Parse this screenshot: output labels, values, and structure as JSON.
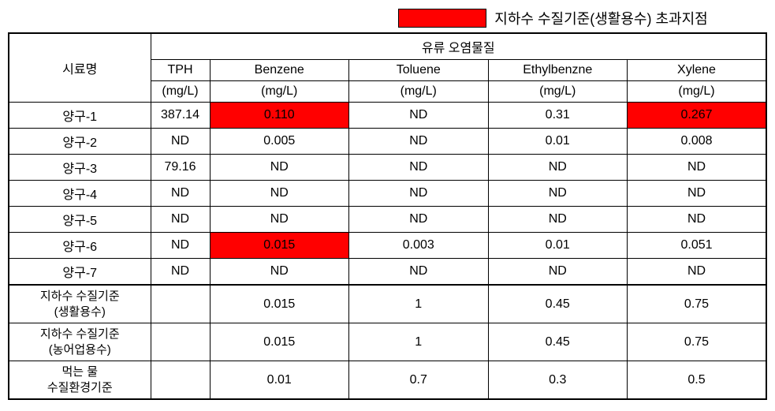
{
  "legend": {
    "label": "지하수 수질기준(생활용수) 초과지점",
    "color": "#ff0000"
  },
  "table": {
    "header": {
      "rowLabel": "시료명",
      "groupLabel": "유류 오염물질",
      "columns": [
        {
          "name": "TPH",
          "unit": "(mg/L)"
        },
        {
          "name": "Benzene",
          "unit": "(mg/L)"
        },
        {
          "name": "Toluene",
          "unit": "(mg/L)"
        },
        {
          "name": "Ethylbenzne",
          "unit": "(mg/L)"
        },
        {
          "name": "Xylene",
          "unit": "(mg/L)"
        }
      ]
    },
    "rows": [
      {
        "label": "양구-1",
        "values": [
          "387.14",
          "0.110",
          "ND",
          "0.31",
          "0.267"
        ],
        "highlight": [
          false,
          true,
          false,
          false,
          true
        ]
      },
      {
        "label": "양구-2",
        "values": [
          "ND",
          "0.005",
          "ND",
          "0.01",
          "0.008"
        ],
        "highlight": [
          false,
          false,
          false,
          false,
          false
        ]
      },
      {
        "label": "양구-3",
        "values": [
          "79.16",
          "ND",
          "ND",
          "ND",
          "ND"
        ],
        "highlight": [
          false,
          false,
          false,
          false,
          false
        ]
      },
      {
        "label": "양구-4",
        "values": [
          "ND",
          "ND",
          "ND",
          "ND",
          "ND"
        ],
        "highlight": [
          false,
          false,
          false,
          false,
          false
        ]
      },
      {
        "label": "양구-5",
        "values": [
          "ND",
          "ND",
          "ND",
          "ND",
          "ND"
        ],
        "highlight": [
          false,
          false,
          false,
          false,
          false
        ]
      },
      {
        "label": "양구-6",
        "values": [
          "ND",
          "0.015",
          "0.003",
          "0.01",
          "0.051"
        ],
        "highlight": [
          false,
          true,
          false,
          false,
          false
        ]
      },
      {
        "label": "양구-7",
        "values": [
          "ND",
          "ND",
          "ND",
          "ND",
          "ND"
        ],
        "highlight": [
          false,
          false,
          false,
          false,
          false
        ]
      }
    ],
    "standards": [
      {
        "label1": "지하수 수질기준",
        "label2": "(생활용수)",
        "values": [
          "",
          "0.015",
          "1",
          "0.45",
          "0.75"
        ]
      },
      {
        "label1": "지하수 수질기준",
        "label2": "(농어업용수)",
        "values": [
          "",
          "0.015",
          "1",
          "0.45",
          "0.75"
        ]
      },
      {
        "label1": "먹는 물",
        "label2": "수질환경기준",
        "values": [
          "",
          "0.01",
          "0.7",
          "0.3",
          "0.5"
        ]
      }
    ]
  }
}
